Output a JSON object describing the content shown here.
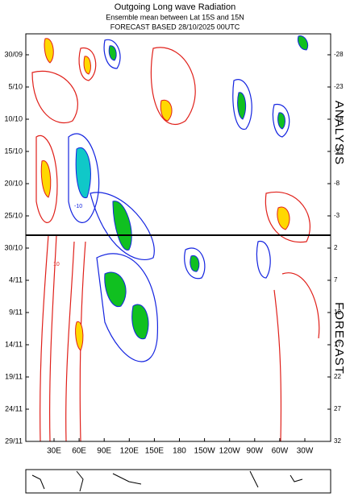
{
  "chart_data": {
    "type": "hovmoller",
    "title": "Outgoing Long wave Radiation",
    "subtitle": "Ensemble mean between  Lat 15S and 15N",
    "forecast_note": "FORECAST  BASED 28/10/2025 00UTC",
    "categories": [
      "30E",
      "60E",
      "90E",
      "120E",
      "150E",
      "180",
      "150W",
      "120W",
      "90W",
      "60W",
      "30W"
    ],
    "y_labels": [
      "30/09",
      "5/10",
      "10/10",
      "15/10",
      "20/10",
      "25/10",
      "30/10",
      "4/11",
      "9/11",
      "14/11",
      "19/11",
      "24/11",
      "29/11"
    ],
    "y2ticks": [
      -28,
      -23,
      -18,
      -13,
      -8,
      -3,
      2,
      7,
      12,
      17,
      22,
      27,
      32
    ],
    "analysis_label": "ANALYSIS",
    "forecast_label": "FORECAST",
    "contour_labels": [
      "-10",
      "10"
    ]
  }
}
